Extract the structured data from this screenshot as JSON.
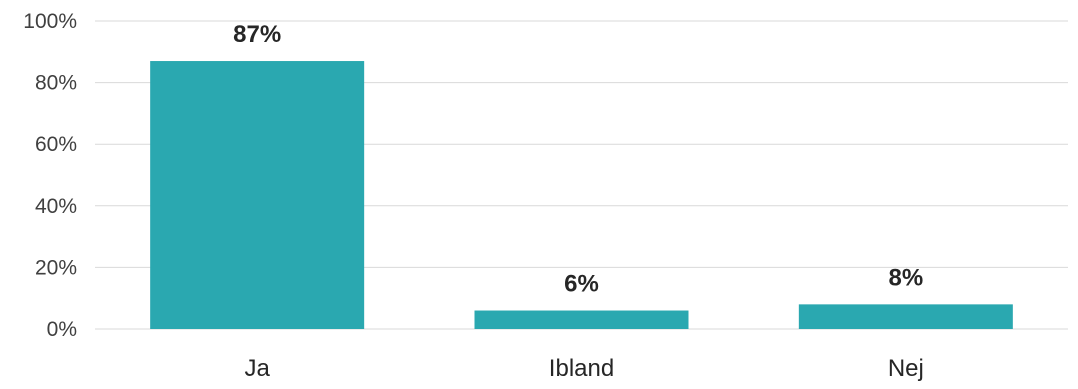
{
  "chart_data": {
    "type": "bar",
    "categories": [
      "Ja",
      "Ibland",
      "Nej"
    ],
    "values": [
      87,
      6,
      8
    ],
    "data_labels": [
      "87%",
      "6%",
      "8%"
    ],
    "ylim": [
      0,
      100
    ],
    "yticks": [
      {
        "value": 0,
        "label": "0%"
      },
      {
        "value": 20,
        "label": "20%"
      },
      {
        "value": 40,
        "label": "40%"
      },
      {
        "value": 60,
        "label": "60%"
      },
      {
        "value": 80,
        "label": "80%"
      },
      {
        "value": 100,
        "label": "100%"
      }
    ],
    "title": "",
    "xlabel": "",
    "ylabel": "",
    "grid": true,
    "legend": "none",
    "colors": {
      "bar": "#2aa8b0",
      "grid": "#d9d9d9",
      "text": "#404040",
      "label": "#262626"
    }
  }
}
